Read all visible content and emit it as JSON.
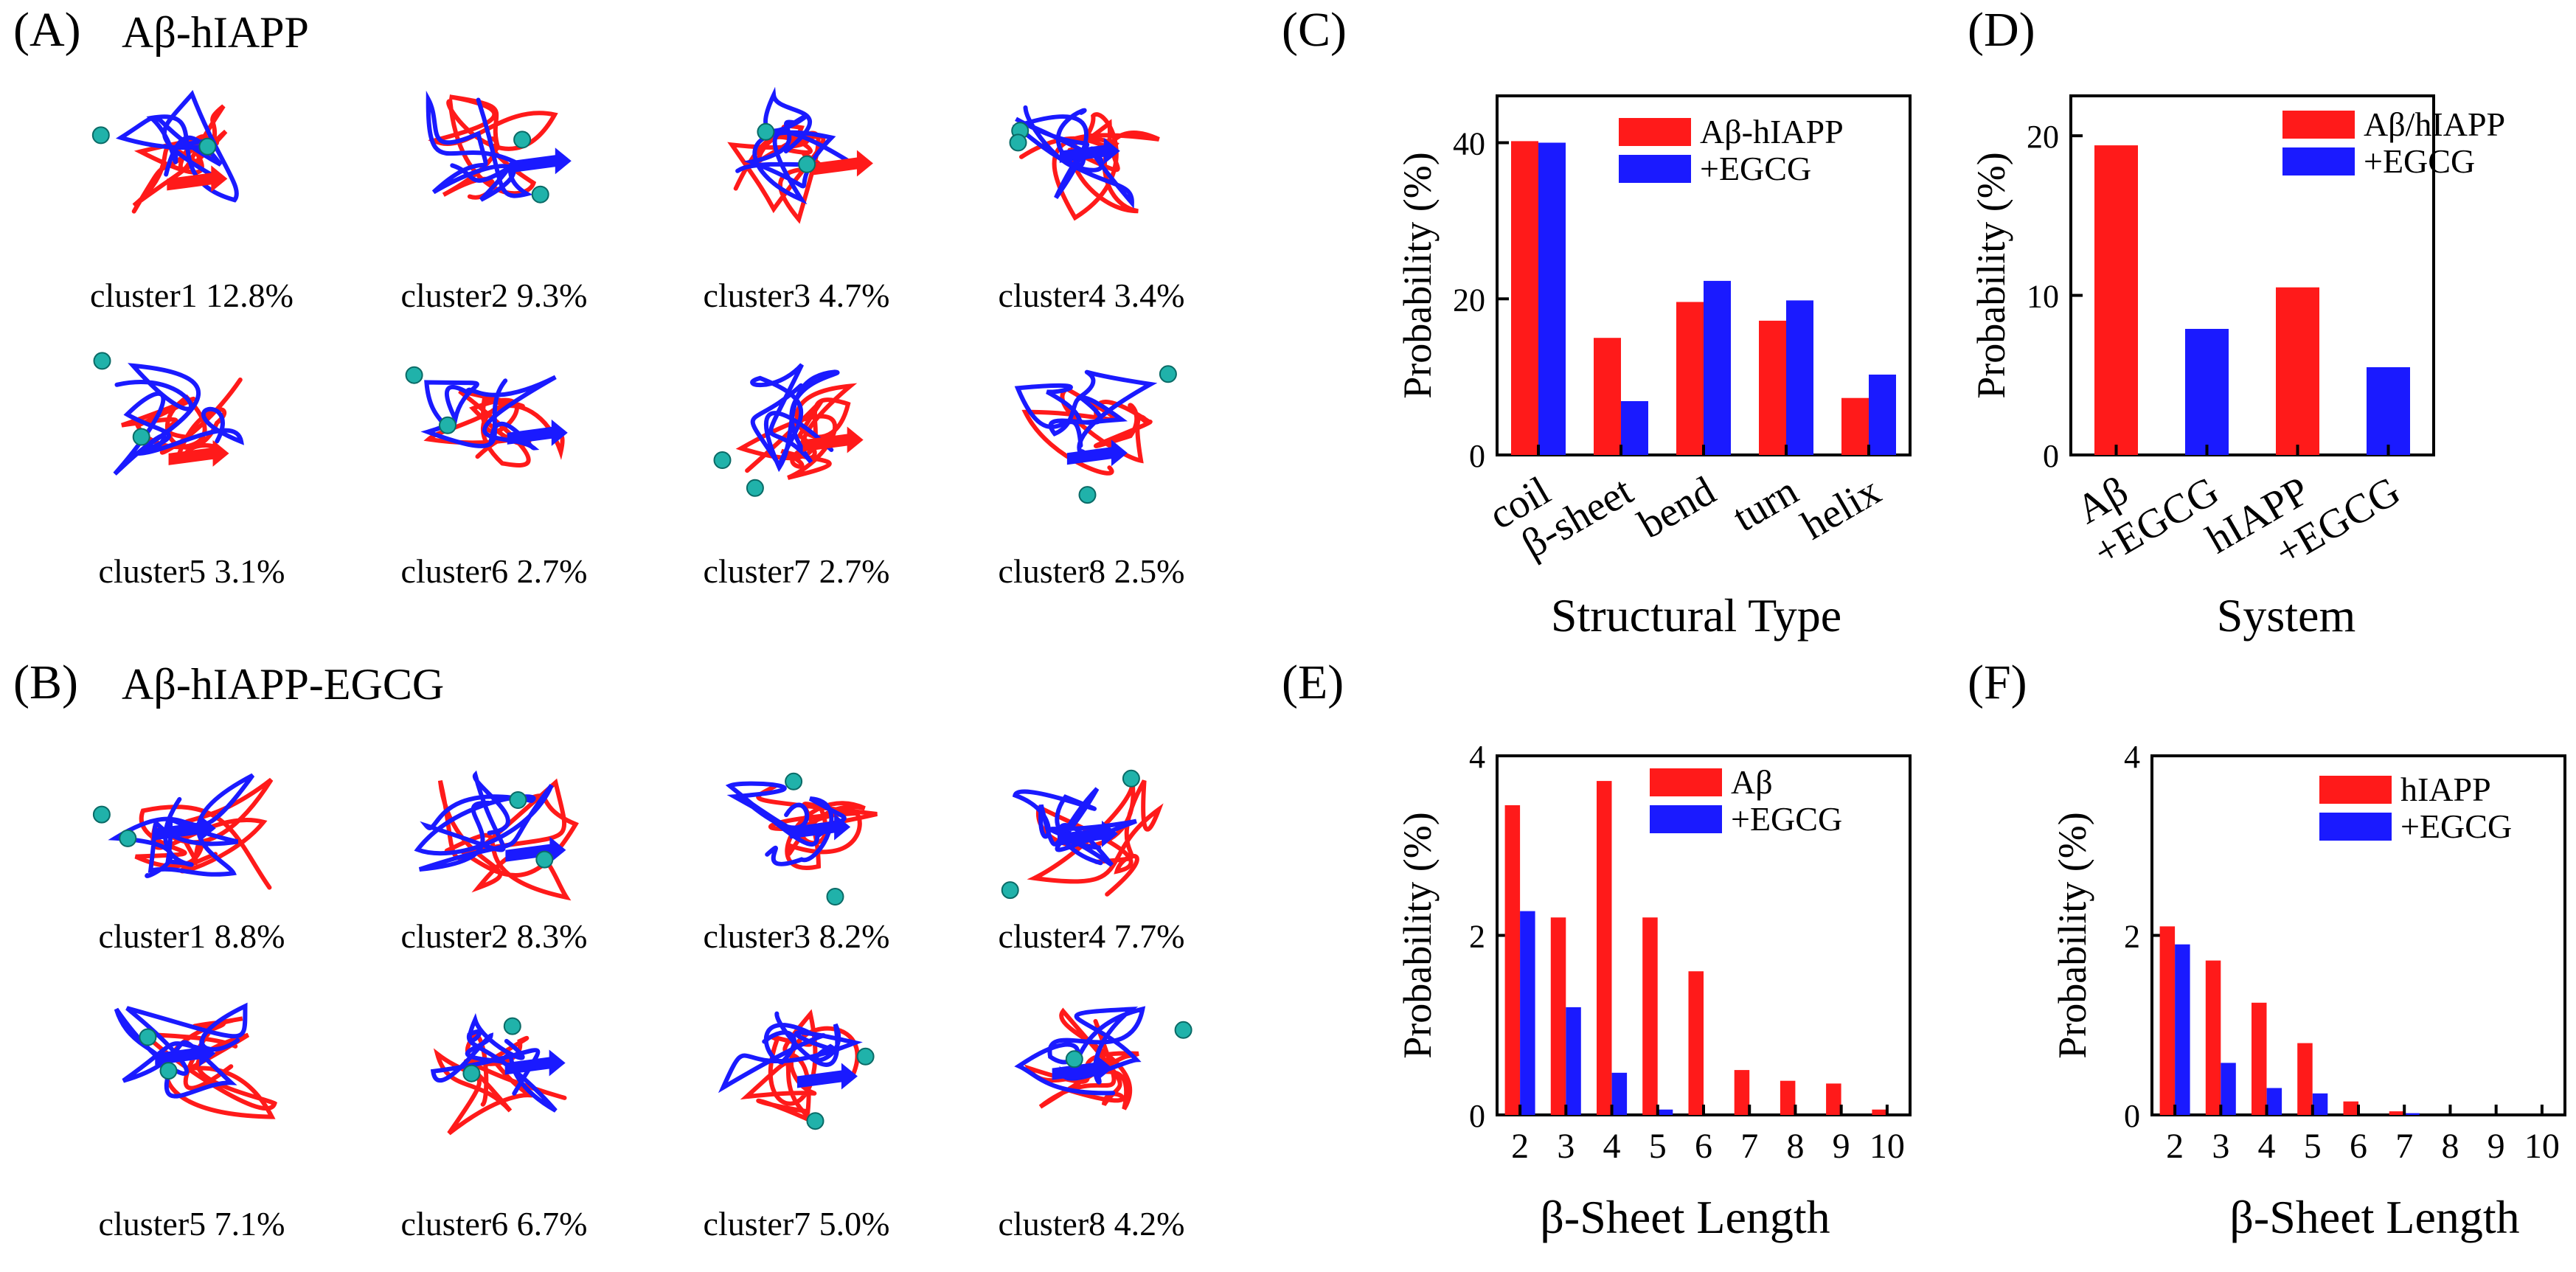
{
  "colors": {
    "red": "#ff1a1a",
    "blue": "#1a1aff",
    "cyan": "#20b2aa"
  },
  "panelA": {
    "letter": "(A)",
    "title": "Aβ-hIAPP",
    "clusters": [
      "cluster1 12.8%",
      "cluster2 9.3%",
      "cluster3 4.7%",
      "cluster4 3.4%",
      "cluster5 3.1%",
      "cluster6 2.7%",
      "cluster7 2.7%",
      "cluster8 2.5%"
    ]
  },
  "panelB": {
    "letter": "(B)",
    "title": "Aβ-hIAPP-EGCG",
    "clusters": [
      "cluster1 8.8%",
      "cluster2 8.3%",
      "cluster3 8.2%",
      "cluster4 7.7%",
      "cluster5 7.1%",
      "cluster6 6.7%",
      "cluster7 5.0%",
      "cluster8 4.2%"
    ]
  },
  "chart_data": [
    {
      "panel": "(C)",
      "type": "bar",
      "categories": [
        "coil",
        "β-sheet",
        "bend",
        "turn",
        "helix"
      ],
      "series": [
        {
          "name": "Aβ-hIAPP",
          "color": "#ff1a1a",
          "values": [
            40.2,
            15.0,
            19.6,
            17.2,
            7.3
          ]
        },
        {
          "name": "+EGCG",
          "color": "#1a1aff",
          "values": [
            40.0,
            6.9,
            22.3,
            19.8,
            10.3
          ]
        }
      ],
      "xlabel": "Structural Type",
      "ylabel": "Probability (%)",
      "ylim": [
        0,
        46
      ],
      "yticks": [
        0,
        20,
        40
      ],
      "legend": "top-right"
    },
    {
      "panel": "(D)",
      "type": "bar",
      "categories": [
        "Aβ",
        "+EGCG",
        "hIAPP",
        "+EGCG"
      ],
      "series": [
        {
          "name": "Aβ/hIAPP",
          "color": "#ff1a1a",
          "values": [
            19.4,
            null,
            10.5,
            null
          ]
        },
        {
          "name": "+EGCG",
          "color": "#1a1aff",
          "values": [
            null,
            7.9,
            null,
            5.5
          ]
        }
      ],
      "xlabel": "System",
      "ylabel": "Probability (%)",
      "ylim": [
        0,
        22.5
      ],
      "yticks": [
        0,
        10,
        20
      ],
      "legend": "top-right"
    },
    {
      "panel": "(E)",
      "type": "bar",
      "categories": [
        "2",
        "3",
        "4",
        "5",
        "6",
        "7",
        "8",
        "9",
        "10"
      ],
      "series": [
        {
          "name": "Aβ",
          "color": "#ff1a1a",
          "values": [
            3.45,
            2.2,
            3.72,
            2.2,
            1.6,
            0.5,
            0.38,
            0.35,
            0.06
          ]
        },
        {
          "name": "+EGCG",
          "color": "#1a1aff",
          "values": [
            2.27,
            1.2,
            0.47,
            0.06,
            0,
            0,
            0,
            0,
            0
          ]
        }
      ],
      "xlabel": "β-Sheet Length",
      "ylabel": "Probability (%)",
      "ylim": [
        0,
        4
      ],
      "yticks": [
        0,
        2,
        4
      ],
      "legend": "top-right"
    },
    {
      "panel": "(F)",
      "type": "bar",
      "categories": [
        "2",
        "3",
        "4",
        "5",
        "6",
        "7",
        "8",
        "9",
        "10"
      ],
      "series": [
        {
          "name": "hIAPP",
          "color": "#ff1a1a",
          "values": [
            2.1,
            1.72,
            1.25,
            0.8,
            0.15,
            0.04,
            0,
            0,
            0
          ]
        },
        {
          "name": "+EGCG",
          "color": "#1a1aff",
          "values": [
            1.9,
            0.58,
            0.3,
            0.24,
            0,
            0.02,
            0,
            0,
            0
          ]
        }
      ],
      "xlabel": "β-Sheet Length",
      "ylabel": "Probability (%)",
      "ylim": [
        0,
        4
      ],
      "yticks": [
        0,
        2,
        4
      ],
      "legend": "top-right"
    }
  ]
}
